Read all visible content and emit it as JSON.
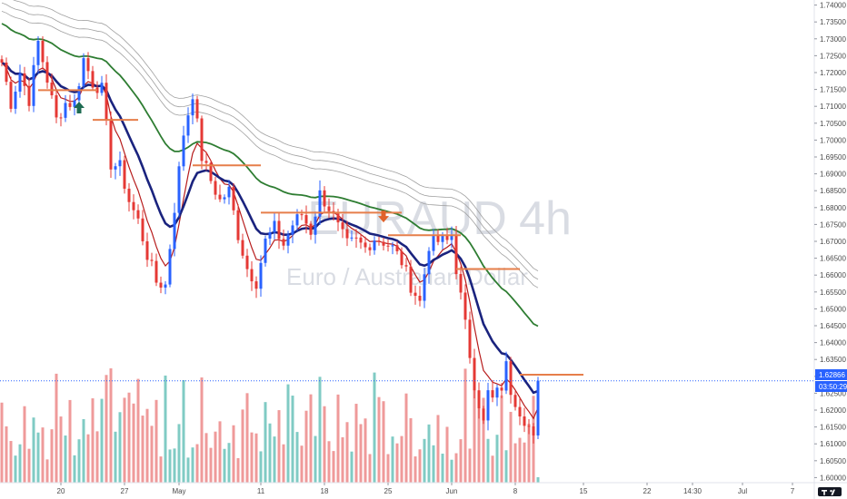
{
  "chart_data": {
    "type": "candlestick",
    "symbol": "EURAUD",
    "interval": "4h",
    "description": "Euro / Australian Dollar",
    "y_ticks": [
      "1.74000",
      "1.73500",
      "1.73000",
      "1.72500",
      "1.72000",
      "1.71500",
      "1.71000",
      "1.70500",
      "1.70000",
      "1.69500",
      "1.69000",
      "1.68500",
      "1.68000",
      "1.67500",
      "1.67000",
      "1.66500",
      "1.66000",
      "1.65500",
      "1.65000",
      "1.64500",
      "1.64000",
      "1.63500",
      "1.63000",
      "1.62500",
      "1.62000",
      "1.61500",
      "1.61000",
      "1.60500",
      "1.60000"
    ],
    "ylim": [
      1.5985,
      1.7415
    ],
    "x_tick_labels": [
      {
        "label": "20",
        "bar": 13
      },
      {
        "label": "27",
        "bar": 27
      },
      {
        "label": "May",
        "bar": 39
      },
      {
        "label": "11",
        "bar": 57
      },
      {
        "label": "18",
        "bar": 71
      },
      {
        "label": "25",
        "bar": 85
      },
      {
        "label": "Jun",
        "bar": 99
      },
      {
        "label": "8",
        "bar": 113
      },
      {
        "label": "15",
        "bar": 128
      },
      {
        "label": "22",
        "bar": 142
      },
      {
        "label": "14:30",
        "bar": 152
      },
      {
        "label": "Jul",
        "bar": 163
      },
      {
        "label": "7",
        "bar": 174
      }
    ],
    "anchors": [
      [
        0,
        1.723
      ],
      [
        2,
        1.711
      ],
      [
        4,
        1.72
      ],
      [
        6,
        1.712
      ],
      [
        8,
        1.729
      ],
      [
        10,
        1.718
      ],
      [
        12,
        1.706
      ],
      [
        14,
        1.711
      ],
      [
        16,
        1.711
      ],
      [
        18,
        1.724
      ],
      [
        20,
        1.717
      ],
      [
        22,
        1.715
      ],
      [
        24,
        1.693
      ],
      [
        26,
        1.692
      ],
      [
        28,
        1.682
      ],
      [
        30,
        1.676
      ],
      [
        32,
        1.666
      ],
      [
        34,
        1.658
      ],
      [
        36,
        1.657
      ],
      [
        38,
        1.68
      ],
      [
        40,
        1.702
      ],
      [
        42,
        1.714
      ],
      [
        44,
        1.695
      ],
      [
        46,
        1.688
      ],
      [
        48,
        1.682
      ],
      [
        50,
        1.685
      ],
      [
        52,
        1.672
      ],
      [
        54,
        1.662
      ],
      [
        56,
        1.658
      ],
      [
        58,
        1.67
      ],
      [
        60,
        1.674
      ],
      [
        62,
        1.669
      ],
      [
        64,
        1.675
      ],
      [
        66,
        1.678
      ],
      [
        68,
        1.673
      ],
      [
        70,
        1.684
      ],
      [
        72,
        1.68
      ],
      [
        74,
        1.674
      ],
      [
        76,
        1.669
      ],
      [
        78,
        1.67
      ],
      [
        80,
        1.668
      ],
      [
        82,
        1.671
      ],
      [
        84,
        1.67
      ],
      [
        86,
        1.668
      ],
      [
        88,
        1.664
      ],
      [
        90,
        1.657
      ],
      [
        92,
        1.652
      ],
      [
        94,
        1.669
      ],
      [
        96,
        1.67
      ],
      [
        98,
        1.67
      ],
      [
        99,
        1.672
      ],
      [
        100,
        1.662
      ],
      [
        102,
        1.645
      ],
      [
        104,
        1.628
      ],
      [
        106,
        1.616
      ],
      [
        107,
        1.625
      ],
      [
        108,
        1.623
      ],
      [
        110,
        1.627
      ],
      [
        111,
        1.633
      ],
      [
        112,
        1.626
      ],
      [
        114,
        1.62
      ],
      [
        116,
        1.615
      ],
      [
        117,
        1.611
      ],
      [
        118,
        1.6287
      ]
    ],
    "moving_averages": [
      {
        "name": "ema-fast",
        "color": "#b71c1c",
        "period": 6
      },
      {
        "name": "ema-slow",
        "color": "#1a237e",
        "period": 14
      },
      {
        "name": "ema-mid",
        "color": "#2e7d32",
        "period": 36
      },
      {
        "name": "band-1",
        "color": "#a0a0a0",
        "period": 52,
        "offset": 0.0035
      },
      {
        "name": "band-2",
        "color": "#a0a0a0",
        "period": 52,
        "offset": 0.006
      },
      {
        "name": "band-3",
        "color": "#a0a0a0",
        "period": 52,
        "offset": 0.0085
      }
    ],
    "levels": [
      {
        "price": 1.7148,
        "from_bar": 8,
        "to_bar": 21
      },
      {
        "price": 1.706,
        "from_bar": 20,
        "to_bar": 30
      },
      {
        "price": 1.6925,
        "from_bar": 42,
        "to_bar": 57
      },
      {
        "price": 1.6785,
        "from_bar": 57,
        "to_bar": 88
      },
      {
        "price": 1.6718,
        "from_bar": 85,
        "to_bar": 101
      },
      {
        "price": 1.6618,
        "from_bar": 100,
        "to_bar": 114
      },
      {
        "price": 1.6305,
        "from_bar": 114,
        "to_bar": 128
      }
    ],
    "arrows": [
      {
        "type": "up",
        "bar": 17,
        "price": 1.7095,
        "color": "#1e6b52"
      },
      {
        "type": "down",
        "bar": 84,
        "price": 1.6775,
        "color": "#e0622b"
      }
    ],
    "last_price": "1.62866",
    "countdown": "03:50:29"
  },
  "colors": {
    "up": "#2962ff",
    "down": "#e53935",
    "vol_up": "#80cbc4",
    "vol_down": "#ef9a9a",
    "level": "#e67e4a",
    "price_tag": "#2962ff"
  }
}
